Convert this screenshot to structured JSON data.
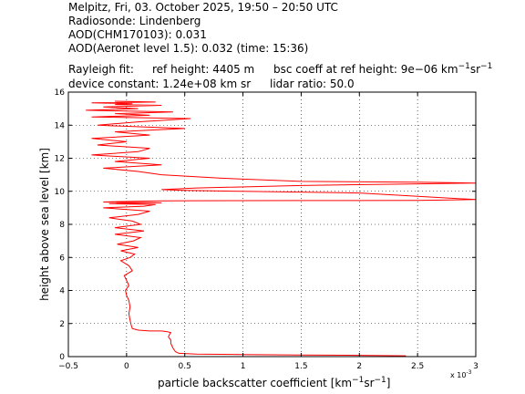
{
  "header": {
    "title_line": "Melpitz, Fri, 03. October 2025, 19:50 – 20:50 UTC",
    "radiosonde": "Radiosonde: Lindenberg",
    "aod_chm": "AOD(CHM170103): 0.031",
    "aod_aeronet": "AOD(Aeronet level 1.5): 0.032   (time: 15:36)",
    "rayleigh_label": "Rayleigh fit:",
    "ref_height": "ref height: 4405 m",
    "bsc_coeff_prefix": "bsc coeff at ref height: 9e−06 km",
    "bsc_unit_exp1": "−1",
    "bsc_unit_sr": "sr",
    "bsc_unit_exp2": "−1",
    "device_constant": "device constant: 1.24e+08 km sr",
    "lidar_ratio": "lidar ratio: 50.0"
  },
  "colors": {
    "line": "#ff0000",
    "axes": "#000000",
    "grid": "#000000",
    "background": "#ffffff"
  },
  "chart_data": {
    "type": "line",
    "title": "",
    "xlabel_main": "particle backscatter coefficient [km",
    "xlabel_exp1": "−1",
    "xlabel_sr": "sr",
    "xlabel_exp2": "−1",
    "xlabel_end": "]",
    "ylabel": "height above sea level [km]",
    "x_multiplier": "x 10",
    "x_multiplier_exp": "-3",
    "xlim": [
      -0.5,
      3
    ],
    "ylim": [
      0,
      16
    ],
    "xticks": [
      -0.5,
      0,
      0.5,
      1,
      1.5,
      2,
      2.5,
      3
    ],
    "xtick_labels": [
      "−0.5",
      "0",
      "0.5",
      "1",
      "1.5",
      "2",
      "2.5",
      "3"
    ],
    "yticks": [
      0,
      2,
      4,
      6,
      8,
      10,
      12,
      14,
      16
    ],
    "ytick_labels": [
      "0",
      "2",
      "4",
      "6",
      "8",
      "10",
      "12",
      "14",
      "16"
    ],
    "grid": true,
    "series": [
      {
        "x": [
          2.4,
          2.0,
          1.5,
          1.0,
          0.6,
          0.45,
          0.42,
          0.4,
          0.38,
          0.38,
          0.36,
          0.37,
          0.38,
          0.35,
          0.3,
          0.2,
          0.1,
          0.05,
          0.04,
          0.03,
          0.02,
          0.03,
          0.02,
          0.0,
          -0.01,
          0.02,
          0.0,
          -0.02,
          0.05,
          0.02,
          -0.05,
          0.03,
          0.07,
          -0.05,
          0.1,
          -0.08,
          0.06,
          0.12,
          -0.1,
          0.15,
          -0.1,
          0.12,
          0.05,
          -0.15,
          0.1,
          0.2,
          -0.2,
          0.15,
          0.25,
          -0.15,
          0.3,
          -0.2,
          0.1,
          0.3,
          0.5,
          1.5,
          2.5,
          3.0,
          2.0,
          1.0,
          0.5,
          0.3,
          0.6,
          1.5,
          2.5,
          3.0,
          2.5,
          1.5,
          0.8,
          0.3,
          0.1,
          -0.2,
          0.3,
          -0.1,
          0.2,
          -0.3,
          0.1,
          0.2,
          -0.25,
          0.0,
          -0.3,
          0.2,
          -0.1,
          0.5,
          -0.25,
          0.1,
          0.55,
          -0.3,
          0.2,
          -0.1,
          0.4,
          -0.35,
          0.1,
          -0.2,
          0.3,
          -0.1,
          0.05,
          -0.3,
          0.25,
          -0.1
        ],
        "y": [
          0.05,
          0.08,
          0.1,
          0.12,
          0.15,
          0.2,
          0.3,
          0.5,
          0.8,
          1.0,
          1.2,
          1.35,
          1.45,
          1.5,
          1.55,
          1.55,
          1.6,
          1.7,
          1.9,
          2.2,
          2.6,
          3.0,
          3.4,
          3.7,
          4.0,
          4.3,
          4.6,
          4.9,
          5.2,
          5.5,
          5.8,
          6.0,
          6.2,
          6.4,
          6.6,
          6.8,
          7.0,
          7.2,
          7.4,
          7.6,
          7.8,
          8.0,
          8.2,
          8.4,
          8.6,
          8.8,
          9.0,
          9.1,
          9.2,
          9.25,
          9.3,
          9.35,
          9.4,
          9.42,
          9.43,
          9.44,
          9.45,
          9.5,
          9.9,
          10.0,
          10.05,
          10.1,
          10.2,
          10.35,
          10.45,
          10.5,
          10.55,
          10.6,
          10.8,
          11.0,
          11.2,
          11.4,
          11.6,
          11.8,
          12.0,
          12.2,
          12.4,
          12.6,
          12.8,
          13.0,
          13.2,
          13.4,
          13.6,
          13.8,
          14.0,
          14.2,
          14.4,
          14.5,
          14.6,
          14.7,
          14.8,
          14.9,
          15.0,
          15.1,
          15.2,
          15.25,
          15.3,
          15.35,
          15.4,
          15.45
        ]
      }
    ]
  }
}
